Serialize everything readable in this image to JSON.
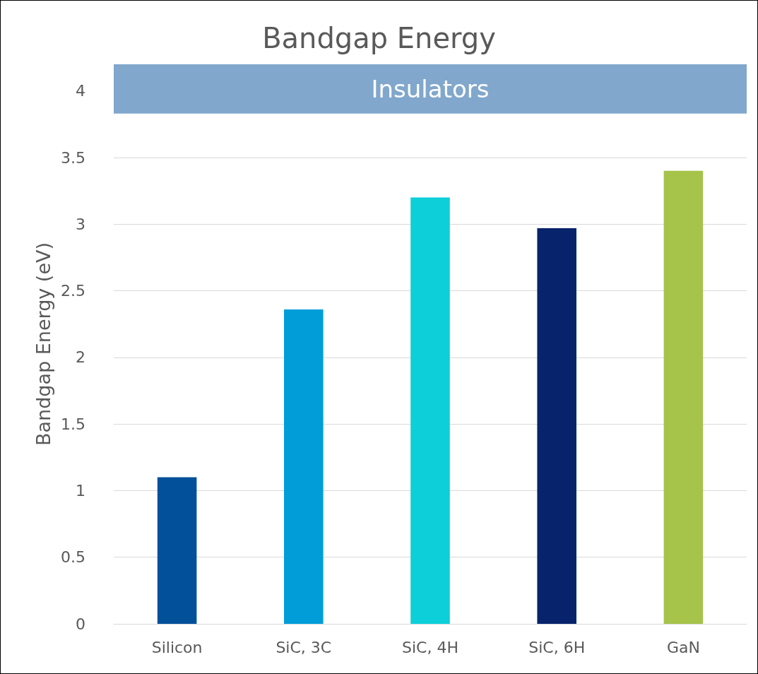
{
  "chart_data": {
    "type": "bar",
    "title": "Bandgap Energy",
    "ylabel": "Bandgap Energy (eV)",
    "categories": [
      "Silicon",
      "SiC, 3C",
      "SiC, 4H",
      "SiC, 6H",
      "GaN"
    ],
    "values": [
      1.1,
      2.36,
      3.2,
      2.97,
      3.4
    ],
    "colors": [
      "#02509a",
      "#019dd9",
      "#0ccfd9",
      "#06236b",
      "#a6c34a"
    ],
    "ylim": [
      0,
      4.2
    ],
    "yticks": [
      0,
      0.5,
      1,
      1.5,
      2,
      2.5,
      3,
      3.5,
      4
    ],
    "grid": "y",
    "bands": [
      {
        "axis": "y",
        "from": 3.83,
        "to": 4.2,
        "label": "Insulators",
        "color": "#81a7cc"
      }
    ]
  }
}
